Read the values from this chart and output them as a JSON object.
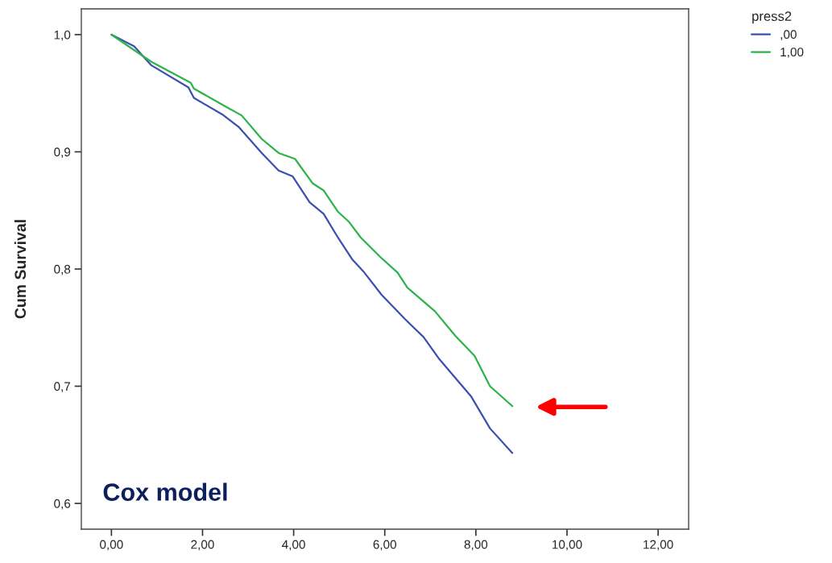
{
  "chart_data": {
    "type": "line",
    "ylabel": "Cum Survival",
    "legend_title": "press2",
    "legend": "top right",
    "grid": false,
    "xlim": [
      -0.66,
      12.67
    ],
    "xticks": [
      {
        "value": 0,
        "label": "0,00"
      },
      {
        "value": 2,
        "label": "2,00"
      },
      {
        "value": 4,
        "label": "4,00"
      },
      {
        "value": 6,
        "label": "6,00"
      },
      {
        "value": 8,
        "label": "8,00"
      },
      {
        "value": 10,
        "label": "10,00"
      },
      {
        "value": 12,
        "label": "12,00"
      }
    ],
    "ylim": [
      0.578,
      1.022
    ],
    "yticks": [
      {
        "value": 0.6,
        "label": "0,6"
      },
      {
        "value": 0.7,
        "label": "0,7"
      },
      {
        "value": 0.8,
        "label": "0,8"
      },
      {
        "value": 0.9,
        "label": "0,9"
      },
      {
        "value": 1.0,
        "label": "1,0"
      }
    ],
    "series": [
      {
        "name": ",00",
        "color": "#3c4fb0",
        "x": [
          0,
          0.5,
          0.87,
          1.69,
          1.81,
          2.43,
          2.8,
          3.3,
          3.67,
          3.98,
          4.35,
          4.66,
          4.97,
          5.29,
          5.53,
          5.93,
          6.45,
          6.85,
          7.2,
          7.55,
          7.9,
          8.31,
          8.8
        ],
        "values": [
          1.0,
          0.99,
          0.974,
          0.955,
          0.946,
          0.932,
          0.921,
          0.899,
          0.884,
          0.879,
          0.857,
          0.847,
          0.827,
          0.808,
          0.798,
          0.778,
          0.757,
          0.742,
          0.723,
          0.707,
          0.691,
          0.664,
          0.643
        ]
      },
      {
        "name": "1,00",
        "color": "#2db34a",
        "x": [
          0,
          0.87,
          1.74,
          1.81,
          2.49,
          2.86,
          3.3,
          3.67,
          4.03,
          4.42,
          4.66,
          4.97,
          5.22,
          5.47,
          5.91,
          6.28,
          6.5,
          7.1,
          7.55,
          7.97,
          8.31,
          8.8
        ],
        "values": [
          1.0,
          0.977,
          0.959,
          0.954,
          0.939,
          0.931,
          0.911,
          0.899,
          0.894,
          0.873,
          0.867,
          0.849,
          0.84,
          0.827,
          0.81,
          0.797,
          0.784,
          0.764,
          0.743,
          0.726,
          0.7,
          0.683
        ]
      }
    ],
    "annotations": [
      "Cox model"
    ]
  }
}
